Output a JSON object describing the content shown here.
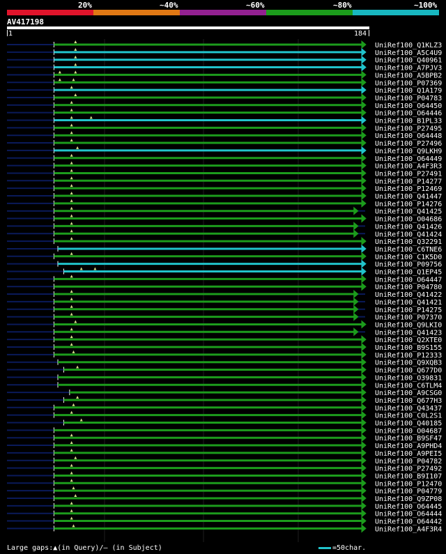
{
  "legend": {
    "colors": [
      "#e0142b",
      "#e07814",
      "#932191",
      "#1c9c1c",
      "#18b7c0"
    ],
    "labels": [
      "20%",
      "~40%",
      "~60%",
      "~80%",
      "~100%"
    ]
  },
  "query": {
    "id": "AV417198",
    "start": "1",
    "end": "184"
  },
  "colors": {
    "green": "#1c9c1c",
    "cyan": "#21c3cb",
    "navy": "#0a1a5a",
    "gap": "#d8e08a"
  },
  "hits": [
    {
      "label": "UniRef100_Q1KLZ3",
      "color": "green",
      "start": 25,
      "end": 184,
      "gaps": [
        36
      ]
    },
    {
      "label": "UniRef100_A5C4U9",
      "color": "cyan",
      "start": 25,
      "end": 184,
      "gaps": [
        36
      ]
    },
    {
      "label": "UniRef100_Q40961",
      "color": "cyan",
      "start": 25,
      "end": 184,
      "gaps": [
        36
      ]
    },
    {
      "label": "UniRef100_A7PJV3",
      "color": "cyan",
      "start": 25,
      "end": 184,
      "gaps": [
        36
      ]
    },
    {
      "label": "UniRef100_A5BPB2",
      "color": "green",
      "start": 25,
      "end": 184,
      "gaps": [
        28,
        36
      ]
    },
    {
      "label": "UniRef100_P07369",
      "color": "green",
      "start": 25,
      "end": 184,
      "gaps": [
        28,
        35
      ]
    },
    {
      "label": "UniRef100_Q1A179",
      "color": "cyan",
      "start": 25,
      "end": 184,
      "gaps": [
        34
      ]
    },
    {
      "label": "UniRef100_P04783",
      "color": "green",
      "start": 25,
      "end": 184,
      "gaps": [
        36
      ]
    },
    {
      "label": "UniRef100_O64450",
      "color": "green",
      "start": 25,
      "end": 184,
      "gaps": [
        34
      ]
    },
    {
      "label": "UniRef100_O64446",
      "color": "green",
      "start": 25,
      "end": 184,
      "gaps": [
        34
      ]
    },
    {
      "label": "UniRef100_B1PL33",
      "color": "cyan",
      "start": 25,
      "end": 184,
      "gaps": [
        34,
        44
      ]
    },
    {
      "label": "UniRef100_P27495",
      "color": "green",
      "start": 25,
      "end": 184,
      "gaps": [
        34
      ]
    },
    {
      "label": "UniRef100_O64448",
      "color": "green",
      "start": 25,
      "end": 184,
      "gaps": [
        34
      ]
    },
    {
      "label": "UniRef100_P27496",
      "color": "green",
      "start": 25,
      "end": 184,
      "gaps": [
        34
      ]
    },
    {
      "label": "UniRef100_Q9LKH9",
      "color": "cyan",
      "start": 25,
      "end": 184,
      "gaps": [
        37
      ]
    },
    {
      "label": "UniRef100_O64449",
      "color": "green",
      "start": 25,
      "end": 184,
      "gaps": [
        34
      ]
    },
    {
      "label": "UniRef100_A4F3R3",
      "color": "green",
      "start": 25,
      "end": 184,
      "gaps": [
        34
      ]
    },
    {
      "label": "UniRef100_P27491",
      "color": "green",
      "start": 25,
      "end": 184,
      "gaps": [
        34
      ]
    },
    {
      "label": "UniRef100_P14277",
      "color": "green",
      "start": 25,
      "end": 184,
      "gaps": [
        34
      ]
    },
    {
      "label": "UniRef100_P12469",
      "color": "green",
      "start": 25,
      "end": 184,
      "gaps": [
        34
      ]
    },
    {
      "label": "UniRef100_Q41447",
      "color": "green",
      "start": 25,
      "end": 184,
      "gaps": [
        34
      ]
    },
    {
      "label": "UniRef100_P14276",
      "color": "green",
      "start": 25,
      "end": 184,
      "gaps": [
        34
      ]
    },
    {
      "label": "UniRef100_Q41425",
      "color": "green",
      "start": 25,
      "end": 180,
      "gaps": [
        34
      ]
    },
    {
      "label": "UniRef100_O04686",
      "color": "green",
      "start": 25,
      "end": 184,
      "gaps": [
        34
      ]
    },
    {
      "label": "UniRef100_Q41426",
      "color": "green",
      "start": 25,
      "end": 180,
      "gaps": [
        34
      ]
    },
    {
      "label": "UniRef100_Q41424",
      "color": "green",
      "start": 25,
      "end": 180,
      "gaps": [
        34
      ]
    },
    {
      "label": "UniRef100_Q32291",
      "color": "green",
      "start": 25,
      "end": 184,
      "gaps": [
        34
      ]
    },
    {
      "label": "UniRef100_C6TNE6",
      "color": "cyan",
      "start": 27,
      "end": 184,
      "gaps": []
    },
    {
      "label": "UniRef100_C1K5D0",
      "color": "green",
      "start": 25,
      "end": 184,
      "gaps": [
        34
      ]
    },
    {
      "label": "UniRef100_P09756",
      "color": "cyan",
      "start": 27,
      "end": 184,
      "gaps": []
    },
    {
      "label": "UniRef100_Q1EP45",
      "color": "cyan",
      "start": 30,
      "end": 184,
      "gaps": [
        39,
        46
      ]
    },
    {
      "label": "UniRef100_O64447",
      "color": "green",
      "start": 25,
      "end": 184,
      "gaps": [
        34
      ]
    },
    {
      "label": "UniRef100_P04780",
      "color": "green",
      "start": 25,
      "end": 184,
      "gaps": []
    },
    {
      "label": "UniRef100_Q41422",
      "color": "green",
      "start": 25,
      "end": 180,
      "gaps": [
        34
      ]
    },
    {
      "label": "UniRef100_Q41421",
      "color": "green",
      "start": 25,
      "end": 180,
      "gaps": [
        34
      ]
    },
    {
      "label": "UniRef100_P14275",
      "color": "green",
      "start": 25,
      "end": 180,
      "gaps": [
        34
      ]
    },
    {
      "label": "UniRef100_P07370",
      "color": "green",
      "start": 25,
      "end": 180,
      "gaps": [
        34
      ]
    },
    {
      "label": "UniRef100_Q9LKI0",
      "color": "green",
      "start": 25,
      "end": 184,
      "gaps": [
        36
      ]
    },
    {
      "label": "UniRef100_Q41423",
      "color": "green",
      "start": 25,
      "end": 180,
      "gaps": [
        34
      ]
    },
    {
      "label": "UniRef100_Q2XTE0",
      "color": "green",
      "start": 25,
      "end": 184,
      "gaps": [
        34
      ]
    },
    {
      "label": "UniRef100_B9S155",
      "color": "green",
      "start": 25,
      "end": 184,
      "gaps": [
        34
      ]
    },
    {
      "label": "UniRef100_P12333",
      "color": "green",
      "start": 25,
      "end": 184,
      "gaps": [
        35
      ]
    },
    {
      "label": "UniRef100_Q9XQB3",
      "color": "green",
      "start": 27,
      "end": 184,
      "gaps": []
    },
    {
      "label": "UniRef100_Q677D0",
      "color": "green",
      "start": 30,
      "end": 184,
      "gaps": [
        37
      ]
    },
    {
      "label": "UniRef100_O39831",
      "color": "green",
      "start": 27,
      "end": 184,
      "gaps": []
    },
    {
      "label": "UniRef100_C6TLM4",
      "color": "green",
      "start": 27,
      "end": 184,
      "gaps": []
    },
    {
      "label": "UniRef100_A9CSG0",
      "color": "green",
      "start": 33,
      "end": 184,
      "gaps": []
    },
    {
      "label": "UniRef100_Q677H3",
      "color": "green",
      "start": 30,
      "end": 184,
      "gaps": [
        37
      ]
    },
    {
      "label": "UniRef100_Q43437",
      "color": "green",
      "start": 25,
      "end": 184,
      "gaps": [
        35
      ]
    },
    {
      "label": "UniRef100_C0L2S1",
      "color": "green",
      "start": 25,
      "end": 184,
      "gaps": [
        34
      ]
    },
    {
      "label": "UniRef100_Q40185",
      "color": "green",
      "start": 30,
      "end": 184,
      "gaps": [
        39
      ]
    },
    {
      "label": "UniRef100_O04687",
      "color": "green",
      "start": 25,
      "end": 184,
      "gaps": []
    },
    {
      "label": "UniRef100_B9SF47",
      "color": "green",
      "start": 25,
      "end": 184,
      "gaps": [
        34
      ]
    },
    {
      "label": "UniRef100_A9PHD4",
      "color": "green",
      "start": 25,
      "end": 184,
      "gaps": [
        34
      ]
    },
    {
      "label": "UniRef100_A9PEI5",
      "color": "green",
      "start": 25,
      "end": 184,
      "gaps": [
        34
      ]
    },
    {
      "label": "UniRef100_P04782",
      "color": "green",
      "start": 25,
      "end": 184,
      "gaps": [
        36
      ]
    },
    {
      "label": "UniRef100_P27492",
      "color": "green",
      "start": 25,
      "end": 184,
      "gaps": [
        34
      ]
    },
    {
      "label": "UniRef100_B9I107",
      "color": "green",
      "start": 25,
      "end": 184,
      "gaps": [
        34
      ]
    },
    {
      "label": "UniRef100_P12470",
      "color": "green",
      "start": 25,
      "end": 184,
      "gaps": [
        34
      ]
    },
    {
      "label": "UniRef100_P04779",
      "color": "green",
      "start": 25,
      "end": 184,
      "gaps": [
        35
      ]
    },
    {
      "label": "UniRef100_Q9ZP08",
      "color": "green",
      "start": 25,
      "end": 184,
      "gaps": [
        36
      ]
    },
    {
      "label": "UniRef100_O64445",
      "color": "green",
      "start": 25,
      "end": 184,
      "gaps": [
        34
      ]
    },
    {
      "label": "UniRef100_O64444",
      "color": "green",
      "start": 25,
      "end": 184,
      "gaps": [
        34
      ]
    },
    {
      "label": "UniRef100_O64442",
      "color": "green",
      "start": 25,
      "end": 184,
      "gaps": [
        34
      ]
    },
    {
      "label": "UniRef100_A4F3R4",
      "color": "green",
      "start": 25,
      "end": 184,
      "gaps": [
        35
      ]
    }
  ],
  "footer": {
    "text": "Large gaps:▲(in Query)/– (in Subject)",
    "scale_label": "=50char."
  }
}
